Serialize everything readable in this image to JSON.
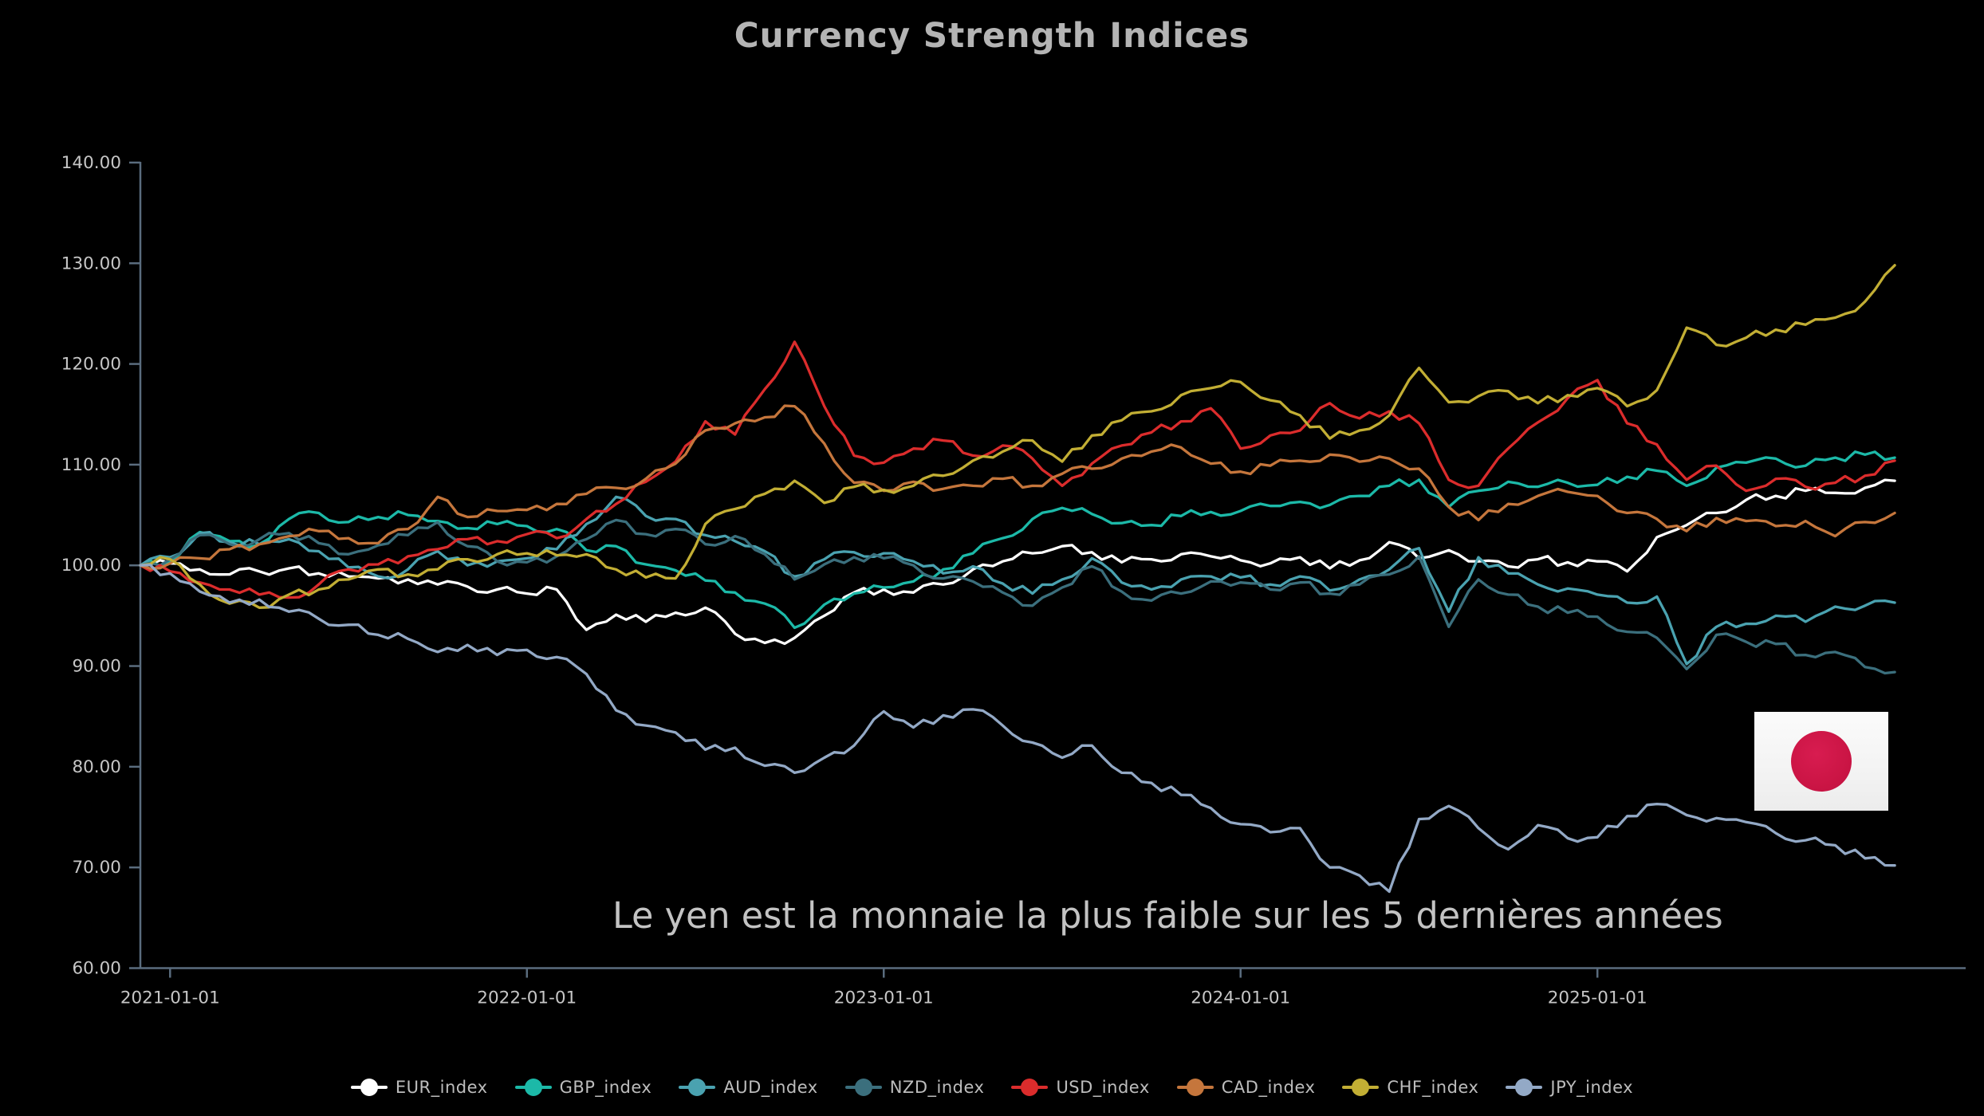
{
  "title": "Currency Strength Indices",
  "annotation": "Le yen est la monnaie la plus faible sur les 5 dernières années",
  "flag": {
    "country": "japan",
    "white": "#f6f6f6",
    "red": "#cb1545"
  },
  "axis": {
    "color": "#5a6c7e",
    "label_color": "#c6c6c6",
    "y_tick_labels": [
      "140.00",
      "130.00",
      "120.00",
      "110.00",
      "100.00",
      "90.00",
      "80.00",
      "70.00",
      "60.00"
    ],
    "y_tick_values": [
      140,
      130,
      120,
      110,
      100,
      90,
      80,
      70,
      60
    ],
    "x_tick_labels": [
      "2021-01-01",
      "2022-01-01",
      "2023-01-01",
      "2024-01-01",
      "2025-01-01"
    ],
    "x_tick_month_index": [
      1,
      13,
      25,
      37,
      49
    ]
  },
  "legend": [
    {
      "label": "EUR_index",
      "color": "#ffffff"
    },
    {
      "label": "GBP_index",
      "color": "#1cb9a8"
    },
    {
      "label": "AUD_index",
      "color": "#4aa2b0"
    },
    {
      "label": "NZD_index",
      "color": "#3b6f7d"
    },
    {
      "label": "USD_index",
      "color": "#db2c2c"
    },
    {
      "label": "CAD_index",
      "color": "#c5763c"
    },
    {
      "label": "CHF_index",
      "color": "#c2ae34"
    },
    {
      "label": "JPY_index",
      "color": "#93a9c6"
    }
  ],
  "chart_data": {
    "type": "line",
    "title": "Currency Strength Indices",
    "x_unit": "month",
    "x_start": "2020-12",
    "x_end": "2025-11",
    "n_points": 60,
    "ylim": [
      60,
      140
    ],
    "grid": false,
    "legend_position": "bottom",
    "base_value": 100,
    "series": [
      {
        "name": "EUR_index",
        "color": "#ffffff",
        "values": [
          100,
          100.2,
          99.6,
          99.1,
          99.4,
          99.7,
          99.2,
          98.9,
          98.7,
          98.6,
          98.1,
          97.9,
          97.6,
          97.2,
          97.6,
          93.6,
          95.1,
          94.4,
          95.3,
          95.8,
          93.2,
          92.3,
          92.8,
          95.0,
          97.3,
          97.6,
          97.3,
          98.1,
          99.6,
          100.4,
          101.2,
          101.9,
          101.3,
          100.3,
          100.6,
          101.1,
          100.9,
          100.5,
          100.2,
          100.8,
          99.7,
          100.5,
          102.3,
          100.7,
          101.5,
          100.4,
          99.9,
          100.6,
          100.3,
          100.4,
          99.4,
          102.8,
          104.0,
          105.2,
          106.5,
          106.9,
          107.4,
          107.2,
          107.7,
          108.4
        ]
      },
      {
        "name": "GBP_index",
        "color": "#1cb9a8",
        "values": [
          100,
          100.4,
          103.3,
          102.4,
          102.1,
          104.6,
          105.2,
          104.3,
          104.8,
          105.0,
          104.4,
          103.7,
          104.1,
          103.9,
          103.6,
          101.5,
          101.9,
          100.1,
          99.5,
          98.5,
          97.3,
          96.2,
          93.8,
          96.1,
          97.2,
          97.8,
          98.4,
          99.6,
          101.2,
          102.7,
          104.6,
          105.7,
          105.1,
          104.2,
          104.0,
          104.9,
          105.3,
          105.4,
          105.9,
          106.3,
          106.0,
          106.9,
          107.9,
          108.5,
          105.8,
          107.4,
          108.3,
          107.8,
          108.2,
          108.0,
          108.8,
          109.4,
          107.9,
          109.7,
          110.2,
          110.6,
          109.9,
          110.7,
          111.0,
          110.7
        ]
      },
      {
        "name": "AUD_index",
        "color": "#4aa2b0",
        "values": [
          100,
          100.8,
          103.2,
          102.3,
          102.1,
          102.6,
          101.4,
          99.8,
          98.9,
          99.6,
          101.4,
          100.0,
          100.4,
          100.7,
          101.6,
          104.1,
          106.8,
          104.9,
          104.6,
          103.0,
          102.4,
          101.4,
          98.9,
          100.6,
          101.3,
          101.2,
          100.4,
          99.2,
          99.9,
          98.2,
          97.2,
          98.6,
          100.7,
          98.3,
          97.6,
          98.6,
          98.9,
          98.8,
          98.1,
          98.9,
          97.5,
          98.6,
          99.6,
          101.7,
          95.4,
          100.8,
          99.2,
          98.1,
          97.7,
          97.1,
          96.3,
          96.9,
          90.2,
          93.9,
          94.2,
          95.0,
          94.4,
          95.9,
          96.0,
          96.3
        ]
      },
      {
        "name": "NZD_index",
        "color": "#3b6f7d",
        "values": [
          100,
          100.6,
          103.0,
          102.1,
          102.6,
          103.2,
          102.2,
          101.1,
          102.0,
          103.0,
          104.3,
          101.9,
          100.4,
          100.3,
          100.9,
          102.6,
          104.5,
          103.1,
          103.6,
          102.1,
          102.9,
          101.1,
          98.6,
          100.1,
          100.8,
          100.7,
          100.0,
          98.7,
          98.4,
          97.3,
          96.0,
          97.8,
          99.9,
          97.4,
          96.5,
          97.2,
          98.4,
          98.3,
          97.6,
          98.3,
          97.2,
          98.1,
          99.1,
          100.9,
          93.9,
          98.6,
          97.1,
          95.9,
          95.3,
          94.9,
          93.4,
          92.8,
          89.7,
          93.1,
          92.4,
          92.2,
          91.1,
          91.4,
          89.9,
          89.4
        ]
      },
      {
        "name": "USD_index",
        "color": "#db2c2c",
        "values": [
          100,
          99.4,
          98.3,
          97.6,
          97.1,
          96.8,
          98.1,
          99.6,
          100.1,
          100.9,
          101.6,
          102.6,
          102.4,
          103.1,
          102.7,
          104.6,
          106.1,
          108.3,
          110.3,
          114.3,
          113.0,
          117.5,
          122.2,
          115.8,
          110.9,
          110.2,
          111.6,
          112.4,
          110.9,
          111.9,
          110.6,
          107.9,
          110.1,
          111.9,
          113.2,
          114.3,
          115.6,
          111.6,
          112.9,
          113.4,
          116.1,
          114.6,
          115.3,
          114.1,
          108.5,
          107.9,
          111.6,
          114.2,
          116.6,
          118.4,
          114.1,
          112.0,
          108.5,
          109.9,
          107.4,
          108.6,
          107.8,
          108.2,
          108.9,
          110.4
        ]
      },
      {
        "name": "CAD_index",
        "color": "#c5763c",
        "values": [
          100,
          100.2,
          100.7,
          101.6,
          102.1,
          102.9,
          103.4,
          102.7,
          102.2,
          103.6,
          106.8,
          104.8,
          105.4,
          105.5,
          106.1,
          107.1,
          107.7,
          108.6,
          110.1,
          113.4,
          114.1,
          114.7,
          115.8,
          112.1,
          108.2,
          107.4,
          108.3,
          107.6,
          107.9,
          108.6,
          107.9,
          109.1,
          109.6,
          110.6,
          111.3,
          111.7,
          110.1,
          109.3,
          109.9,
          110.4,
          111.0,
          110.3,
          110.6,
          109.6,
          105.8,
          104.5,
          106.1,
          106.9,
          107.3,
          106.9,
          105.2,
          104.6,
          103.4,
          104.7,
          104.4,
          103.9,
          104.4,
          102.9,
          104.3,
          105.2
        ]
      },
      {
        "name": "CHF_index",
        "color": "#c2ae34",
        "values": [
          100,
          100.6,
          98.1,
          96.2,
          95.8,
          97.1,
          97.6,
          98.6,
          99.6,
          99.1,
          99.6,
          100.6,
          101.1,
          101.2,
          101.0,
          101.1,
          99.6,
          98.8,
          98.7,
          104.1,
          105.6,
          107.1,
          108.4,
          106.2,
          107.8,
          107.5,
          107.9,
          108.9,
          110.4,
          111.3,
          112.4,
          110.3,
          112.9,
          114.4,
          115.3,
          116.9,
          117.6,
          118.2,
          116.4,
          114.9,
          112.6,
          113.4,
          114.9,
          119.6,
          116.2,
          116.8,
          117.3,
          116.1,
          116.9,
          117.6,
          115.8,
          117.4,
          123.6,
          121.9,
          122.6,
          123.4,
          123.9,
          124.6,
          126.2,
          129.8
        ]
      },
      {
        "name": "JPY_index",
        "color": "#93a9c6",
        "values": [
          100,
          99.2,
          97.4,
          96.3,
          96.6,
          95.4,
          94.7,
          94.1,
          93.1,
          92.7,
          91.4,
          92.1,
          91.1,
          91.6,
          90.9,
          89.2,
          85.6,
          84.1,
          83.4,
          81.7,
          81.9,
          80.1,
          79.4,
          80.9,
          82.1,
          85.5,
          83.9,
          85.1,
          85.7,
          84.1,
          82.4,
          80.9,
          82.1,
          79.4,
          78.4,
          77.2,
          75.9,
          74.3,
          73.5,
          73.9,
          70.0,
          69.2,
          67.6,
          74.8,
          76.1,
          73.9,
          71.8,
          74.2,
          72.9,
          73.0,
          75.1,
          76.3,
          75.2,
          74.9,
          74.5,
          73.4,
          72.7,
          72.2,
          70.9,
          70.2
        ]
      }
    ]
  }
}
